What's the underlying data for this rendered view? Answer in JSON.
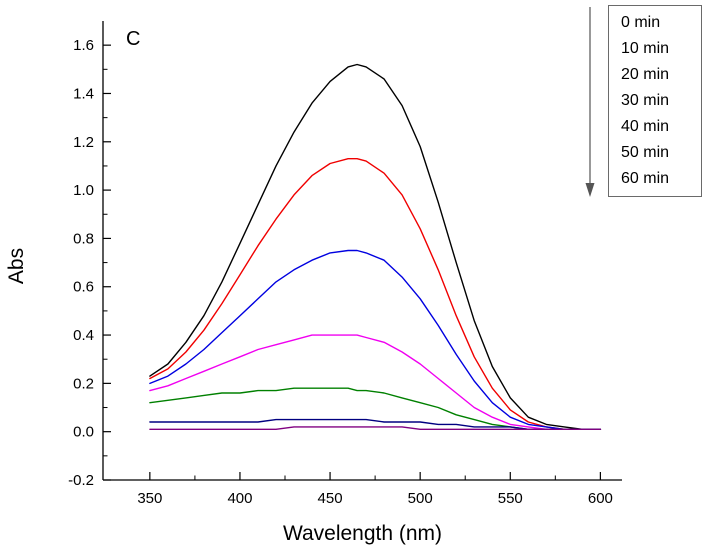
{
  "figure": {
    "panel_label": "C",
    "background": "#ffffff"
  },
  "chart_data": {
    "type": "line",
    "title": "",
    "xlabel": "Wavelength (nm)",
    "ylabel": "Abs",
    "xlim": [
      324,
      612
    ],
    "ylim": [
      -0.2,
      1.7
    ],
    "xticks": [
      350,
      400,
      450,
      500,
      550,
      600
    ],
    "yticks": [
      -0.2,
      0.0,
      0.2,
      0.4,
      0.6,
      0.8,
      1.0,
      1.2,
      1.4,
      1.6
    ],
    "grid": false,
    "axis_color": "#000000",
    "legend": {
      "position": "top-right",
      "entries": [
        "0 min",
        "10 min",
        "20 min",
        "30 min",
        "40 min",
        "50 min",
        "60 min"
      ]
    },
    "annotation": {
      "type": "down-arrow",
      "meaning": "absorbance decreases with reaction time",
      "color": "#555555"
    },
    "x": [
      350,
      360,
      370,
      380,
      390,
      400,
      410,
      420,
      430,
      440,
      450,
      460,
      465,
      470,
      480,
      490,
      500,
      510,
      520,
      530,
      540,
      550,
      560,
      570,
      580,
      590,
      600
    ],
    "series": [
      {
        "name": "0 min",
        "color": "#000000",
        "y": [
          0.23,
          0.28,
          0.37,
          0.48,
          0.62,
          0.78,
          0.94,
          1.1,
          1.24,
          1.36,
          1.45,
          1.51,
          1.52,
          1.51,
          1.46,
          1.35,
          1.18,
          0.95,
          0.7,
          0.46,
          0.27,
          0.14,
          0.06,
          0.03,
          0.02,
          0.01,
          0.01
        ]
      },
      {
        "name": "10 min",
        "color": "#f00000",
        "y": [
          0.22,
          0.26,
          0.33,
          0.42,
          0.53,
          0.65,
          0.77,
          0.88,
          0.98,
          1.06,
          1.11,
          1.13,
          1.13,
          1.12,
          1.07,
          0.98,
          0.84,
          0.67,
          0.48,
          0.31,
          0.18,
          0.09,
          0.04,
          0.02,
          0.01,
          0.01,
          0.01
        ]
      },
      {
        "name": "20 min",
        "color": "#0000e0",
        "y": [
          0.2,
          0.23,
          0.28,
          0.34,
          0.41,
          0.48,
          0.55,
          0.62,
          0.67,
          0.71,
          0.74,
          0.75,
          0.75,
          0.74,
          0.71,
          0.64,
          0.55,
          0.44,
          0.32,
          0.21,
          0.12,
          0.06,
          0.03,
          0.02,
          0.01,
          0.01,
          0.01
        ]
      },
      {
        "name": "30 min",
        "color": "#f000f0",
        "y": [
          0.17,
          0.19,
          0.22,
          0.25,
          0.28,
          0.31,
          0.34,
          0.36,
          0.38,
          0.4,
          0.4,
          0.4,
          0.4,
          0.39,
          0.37,
          0.33,
          0.28,
          0.22,
          0.16,
          0.1,
          0.06,
          0.03,
          0.02,
          0.01,
          0.01,
          0.01,
          0.01
        ]
      },
      {
        "name": "40 min",
        "color": "#008000",
        "y": [
          0.12,
          0.13,
          0.14,
          0.15,
          0.16,
          0.16,
          0.17,
          0.17,
          0.18,
          0.18,
          0.18,
          0.18,
          0.17,
          0.17,
          0.16,
          0.14,
          0.12,
          0.1,
          0.07,
          0.05,
          0.03,
          0.02,
          0.01,
          0.01,
          0.01,
          0.01,
          0.01
        ]
      },
      {
        "name": "50 min",
        "color": "#000080",
        "y": [
          0.04,
          0.04,
          0.04,
          0.04,
          0.04,
          0.04,
          0.04,
          0.05,
          0.05,
          0.05,
          0.05,
          0.05,
          0.05,
          0.05,
          0.04,
          0.04,
          0.04,
          0.03,
          0.03,
          0.02,
          0.02,
          0.02,
          0.01,
          0.01,
          0.01,
          0.01,
          0.01
        ]
      },
      {
        "name": "60 min",
        "color": "#800080",
        "y": [
          0.01,
          0.01,
          0.01,
          0.01,
          0.01,
          0.01,
          0.01,
          0.01,
          0.02,
          0.02,
          0.02,
          0.02,
          0.02,
          0.02,
          0.02,
          0.02,
          0.01,
          0.01,
          0.01,
          0.01,
          0.01,
          0.01,
          0.01,
          0.01,
          0.01,
          0.01,
          0.01
        ]
      }
    ]
  }
}
